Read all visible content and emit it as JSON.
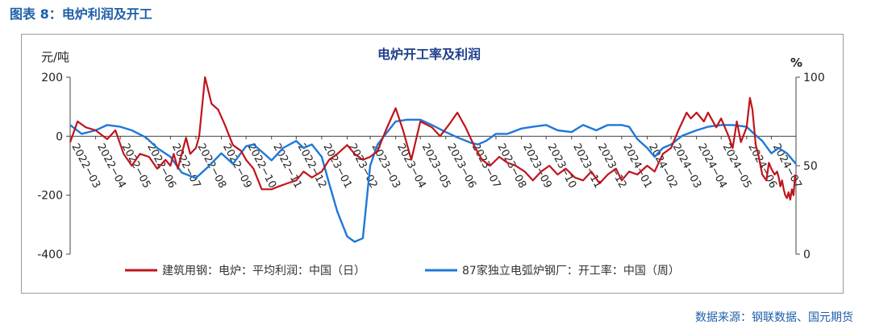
{
  "figure_caption": "图表 8：电炉利润及开工",
  "source_note": "数据来源：钢联数据、国元期货",
  "colors": {
    "profit": "#c0141d",
    "utilization": "#1f78d8",
    "axis": "#444444",
    "frame": "#9a9a9a",
    "caption": "#1f5fa8"
  },
  "chart_data": {
    "type": "line",
    "title": "电炉开工率及利润",
    "left_unit": "元/吨",
    "right_unit": "%",
    "y_left": {
      "min": -400,
      "max": 200,
      "ticks": [
        200,
        0,
        -200,
        -400
      ],
      "tick_labels": [
        "200",
        "0",
        "-200",
        "-400"
      ]
    },
    "y_right": {
      "min": 0,
      "max": 100,
      "ticks": [
        100,
        50,
        0
      ],
      "tick_labels": [
        "100",
        "50",
        "0"
      ]
    },
    "x_range": [
      "2022-03-01",
      "2024-07-31"
    ],
    "x_tick_dates": [
      "2022-03-01",
      "2022-04-01",
      "2022-05-01",
      "2022-06-01",
      "2022-07-01",
      "2022-08-01",
      "2022-09-01",
      "2022-10-01",
      "2022-11-01",
      "2022-12-01",
      "2023-01-01",
      "2023-02-01",
      "2023-03-01",
      "2023-04-01",
      "2023-05-01",
      "2023-06-01",
      "2023-07-01",
      "2023-08-01",
      "2023-09-01",
      "2023-10-01",
      "2023-11-01",
      "2023-12-01",
      "2024-01-01",
      "2024-02-01",
      "2024-03-01",
      "2024-04-01",
      "2024-05-01",
      "2024-06-01",
      "2024-07-01"
    ],
    "x_tick_labels": [
      "2022−03",
      "2022−04",
      "2022−05",
      "2022−06",
      "2022−07",
      "2022−08",
      "2022−09",
      "2022−10",
      "2022−11",
      "2022−12",
      "2023−01",
      "2023−02",
      "2023−03",
      "2023−04",
      "2023−05",
      "2023−06",
      "2023−07",
      "2023−08",
      "2023−09",
      "2023−10",
      "2023−11",
      "2023−12",
      "2024−01",
      "2024−02",
      "2024−03",
      "2024−04",
      "2024−05",
      "2024−06",
      "2024−07"
    ],
    "series": [
      {
        "name": "建筑用钢：电炉：平均利润：中国（日）",
        "axis": "left",
        "points": [
          [
            "2022-03-01",
            -20
          ],
          [
            "2022-03-10",
            50
          ],
          [
            "2022-03-20",
            30
          ],
          [
            "2022-04-01",
            20
          ],
          [
            "2022-04-15",
            -10
          ],
          [
            "2022-04-25",
            20
          ],
          [
            "2022-05-05",
            -60
          ],
          [
            "2022-05-15",
            -100
          ],
          [
            "2022-05-25",
            -60
          ],
          [
            "2022-06-05",
            -70
          ],
          [
            "2022-06-15",
            -110
          ],
          [
            "2022-06-25",
            -80
          ],
          [
            "2022-07-01",
            -100
          ],
          [
            "2022-07-05",
            -60
          ],
          [
            "2022-07-10",
            -110
          ],
          [
            "2022-07-20",
            -5
          ],
          [
            "2022-07-25",
            -60
          ],
          [
            "2022-08-01",
            -40
          ],
          [
            "2022-08-05",
            0
          ],
          [
            "2022-08-12",
            200
          ],
          [
            "2022-08-20",
            110
          ],
          [
            "2022-08-28",
            90
          ],
          [
            "2022-09-05",
            40
          ],
          [
            "2022-09-15",
            -30
          ],
          [
            "2022-09-25",
            -50
          ],
          [
            "2022-10-01",
            -80
          ],
          [
            "2022-10-10",
            -110
          ],
          [
            "2022-10-20",
            -180
          ],
          [
            "2022-11-01",
            -180
          ],
          [
            "2022-11-10",
            -170
          ],
          [
            "2022-11-20",
            -160
          ],
          [
            "2022-12-01",
            -150
          ],
          [
            "2022-12-10",
            -120
          ],
          [
            "2022-12-20",
            -140
          ],
          [
            "2023-01-01",
            -120
          ],
          [
            "2023-01-10",
            -80
          ],
          [
            "2023-01-20",
            -60
          ],
          [
            "2023-02-01",
            -30
          ],
          [
            "2023-02-10",
            -60
          ],
          [
            "2023-02-20",
            -80
          ],
          [
            "2023-03-01",
            -70
          ],
          [
            "2023-03-10",
            -50
          ],
          [
            "2023-03-20",
            20
          ],
          [
            "2023-04-01",
            95
          ],
          [
            "2023-04-10",
            20
          ],
          [
            "2023-04-20",
            -80
          ],
          [
            "2023-05-01",
            50
          ],
          [
            "2023-05-15",
            30
          ],
          [
            "2023-05-25",
            0
          ],
          [
            "2023-06-05",
            40
          ],
          [
            "2023-06-15",
            80
          ],
          [
            "2023-06-25",
            30
          ],
          [
            "2023-07-05",
            -30
          ],
          [
            "2023-07-15",
            -80
          ],
          [
            "2023-07-25",
            -100
          ],
          [
            "2023-08-05",
            -70
          ],
          [
            "2023-08-15",
            -90
          ],
          [
            "2023-08-25",
            -100
          ],
          [
            "2023-09-05",
            -120
          ],
          [
            "2023-09-15",
            -150
          ],
          [
            "2023-09-25",
            -120
          ],
          [
            "2023-10-05",
            -100
          ],
          [
            "2023-10-15",
            -130
          ],
          [
            "2023-10-25",
            -110
          ],
          [
            "2023-11-05",
            -140
          ],
          [
            "2023-11-15",
            -150
          ],
          [
            "2023-11-25",
            -120
          ],
          [
            "2023-12-05",
            -160
          ],
          [
            "2023-12-15",
            -130
          ],
          [
            "2023-12-25",
            -110
          ],
          [
            "2024-01-01",
            -150
          ],
          [
            "2024-01-10",
            -120
          ],
          [
            "2024-01-20",
            -130
          ],
          [
            "2024-02-01",
            -100
          ],
          [
            "2024-02-10",
            -120
          ],
          [
            "2024-02-20",
            -60
          ],
          [
            "2024-03-01",
            -40
          ],
          [
            "2024-03-10",
            20
          ],
          [
            "2024-03-20",
            80
          ],
          [
            "2024-03-25",
            60
          ],
          [
            "2024-04-01",
            80
          ],
          [
            "2024-04-10",
            50
          ],
          [
            "2024-04-15",
            80
          ],
          [
            "2024-04-25",
            30
          ],
          [
            "2024-05-01",
            60
          ],
          [
            "2024-05-10",
            0
          ],
          [
            "2024-05-15",
            -40
          ],
          [
            "2024-05-20",
            50
          ],
          [
            "2024-05-25",
            -20
          ],
          [
            "2024-06-01",
            30
          ],
          [
            "2024-06-05",
            130
          ],
          [
            "2024-06-08",
            90
          ],
          [
            "2024-06-12",
            -30
          ],
          [
            "2024-06-15",
            -60
          ],
          [
            "2024-06-20",
            -130
          ],
          [
            "2024-06-25",
            -150
          ],
          [
            "2024-06-28",
            -90
          ],
          [
            "2024-07-01",
            -110
          ],
          [
            "2024-07-05",
            -130
          ],
          [
            "2024-07-08",
            -120
          ],
          [
            "2024-07-10",
            -140
          ],
          [
            "2024-07-12",
            -170
          ],
          [
            "2024-07-14",
            -150
          ],
          [
            "2024-07-16",
            -180
          ],
          [
            "2024-07-18",
            -200
          ],
          [
            "2024-07-20",
            -210
          ],
          [
            "2024-07-22",
            -190
          ],
          [
            "2024-07-24",
            -215
          ],
          [
            "2024-07-26",
            -180
          ],
          [
            "2024-07-28",
            -200
          ],
          [
            "2024-07-30",
            -130
          ]
        ]
      },
      {
        "name": "87家独立电弧炉钢厂：开工率：中国（周）",
        "axis": "right",
        "points": [
          [
            "2022-03-01",
            73
          ],
          [
            "2022-03-15",
            68
          ],
          [
            "2022-04-01",
            70
          ],
          [
            "2022-04-15",
            73
          ],
          [
            "2022-05-01",
            72
          ],
          [
            "2022-05-15",
            70
          ],
          [
            "2022-06-01",
            66
          ],
          [
            "2022-06-15",
            60
          ],
          [
            "2022-07-01",
            55
          ],
          [
            "2022-07-15",
            46
          ],
          [
            "2022-08-01",
            43
          ],
          [
            "2022-08-15",
            49
          ],
          [
            "2022-09-01",
            57
          ],
          [
            "2022-09-15",
            51
          ],
          [
            "2022-10-01",
            61
          ],
          [
            "2022-10-10",
            62
          ],
          [
            "2022-10-20",
            58
          ],
          [
            "2022-11-01",
            53
          ],
          [
            "2022-11-15",
            60
          ],
          [
            "2022-12-01",
            64
          ],
          [
            "2022-12-10",
            60
          ],
          [
            "2022-12-20",
            62
          ],
          [
            "2023-01-01",
            55
          ],
          [
            "2023-01-10",
            40
          ],
          [
            "2023-01-20",
            24
          ],
          [
            "2023-02-01",
            10
          ],
          [
            "2023-02-10",
            7
          ],
          [
            "2023-02-20",
            9
          ],
          [
            "2023-03-01",
            50
          ],
          [
            "2023-03-10",
            62
          ],
          [
            "2023-03-20",
            68
          ],
          [
            "2023-04-01",
            75
          ],
          [
            "2023-04-15",
            76
          ],
          [
            "2023-05-01",
            76
          ],
          [
            "2023-05-15",
            73
          ],
          [
            "2023-06-01",
            69
          ],
          [
            "2023-06-15",
            66
          ],
          [
            "2023-07-01",
            63
          ],
          [
            "2023-07-10",
            62
          ],
          [
            "2023-07-20",
            64
          ],
          [
            "2023-08-01",
            68
          ],
          [
            "2023-08-15",
            68
          ],
          [
            "2023-09-01",
            71
          ],
          [
            "2023-09-15",
            72
          ],
          [
            "2023-10-01",
            73
          ],
          [
            "2023-10-15",
            70
          ],
          [
            "2023-11-01",
            69
          ],
          [
            "2023-11-15",
            73
          ],
          [
            "2023-12-01",
            70
          ],
          [
            "2023-12-15",
            73
          ],
          [
            "2024-01-01",
            73
          ],
          [
            "2024-01-10",
            72
          ],
          [
            "2024-01-20",
            65
          ],
          [
            "2024-02-01",
            60
          ],
          [
            "2024-02-10",
            55
          ],
          [
            "2024-02-20",
            60
          ],
          [
            "2024-03-01",
            62
          ],
          [
            "2024-03-15",
            67
          ],
          [
            "2024-04-01",
            70
          ],
          [
            "2024-04-15",
            72
          ],
          [
            "2024-05-01",
            73
          ],
          [
            "2024-05-15",
            73
          ],
          [
            "2024-06-01",
            72
          ],
          [
            "2024-06-10",
            68
          ],
          [
            "2024-06-20",
            64
          ],
          [
            "2024-07-01",
            57
          ],
          [
            "2024-07-10",
            60
          ],
          [
            "2024-07-20",
            57
          ],
          [
            "2024-07-31",
            51
          ]
        ]
      }
    ]
  }
}
